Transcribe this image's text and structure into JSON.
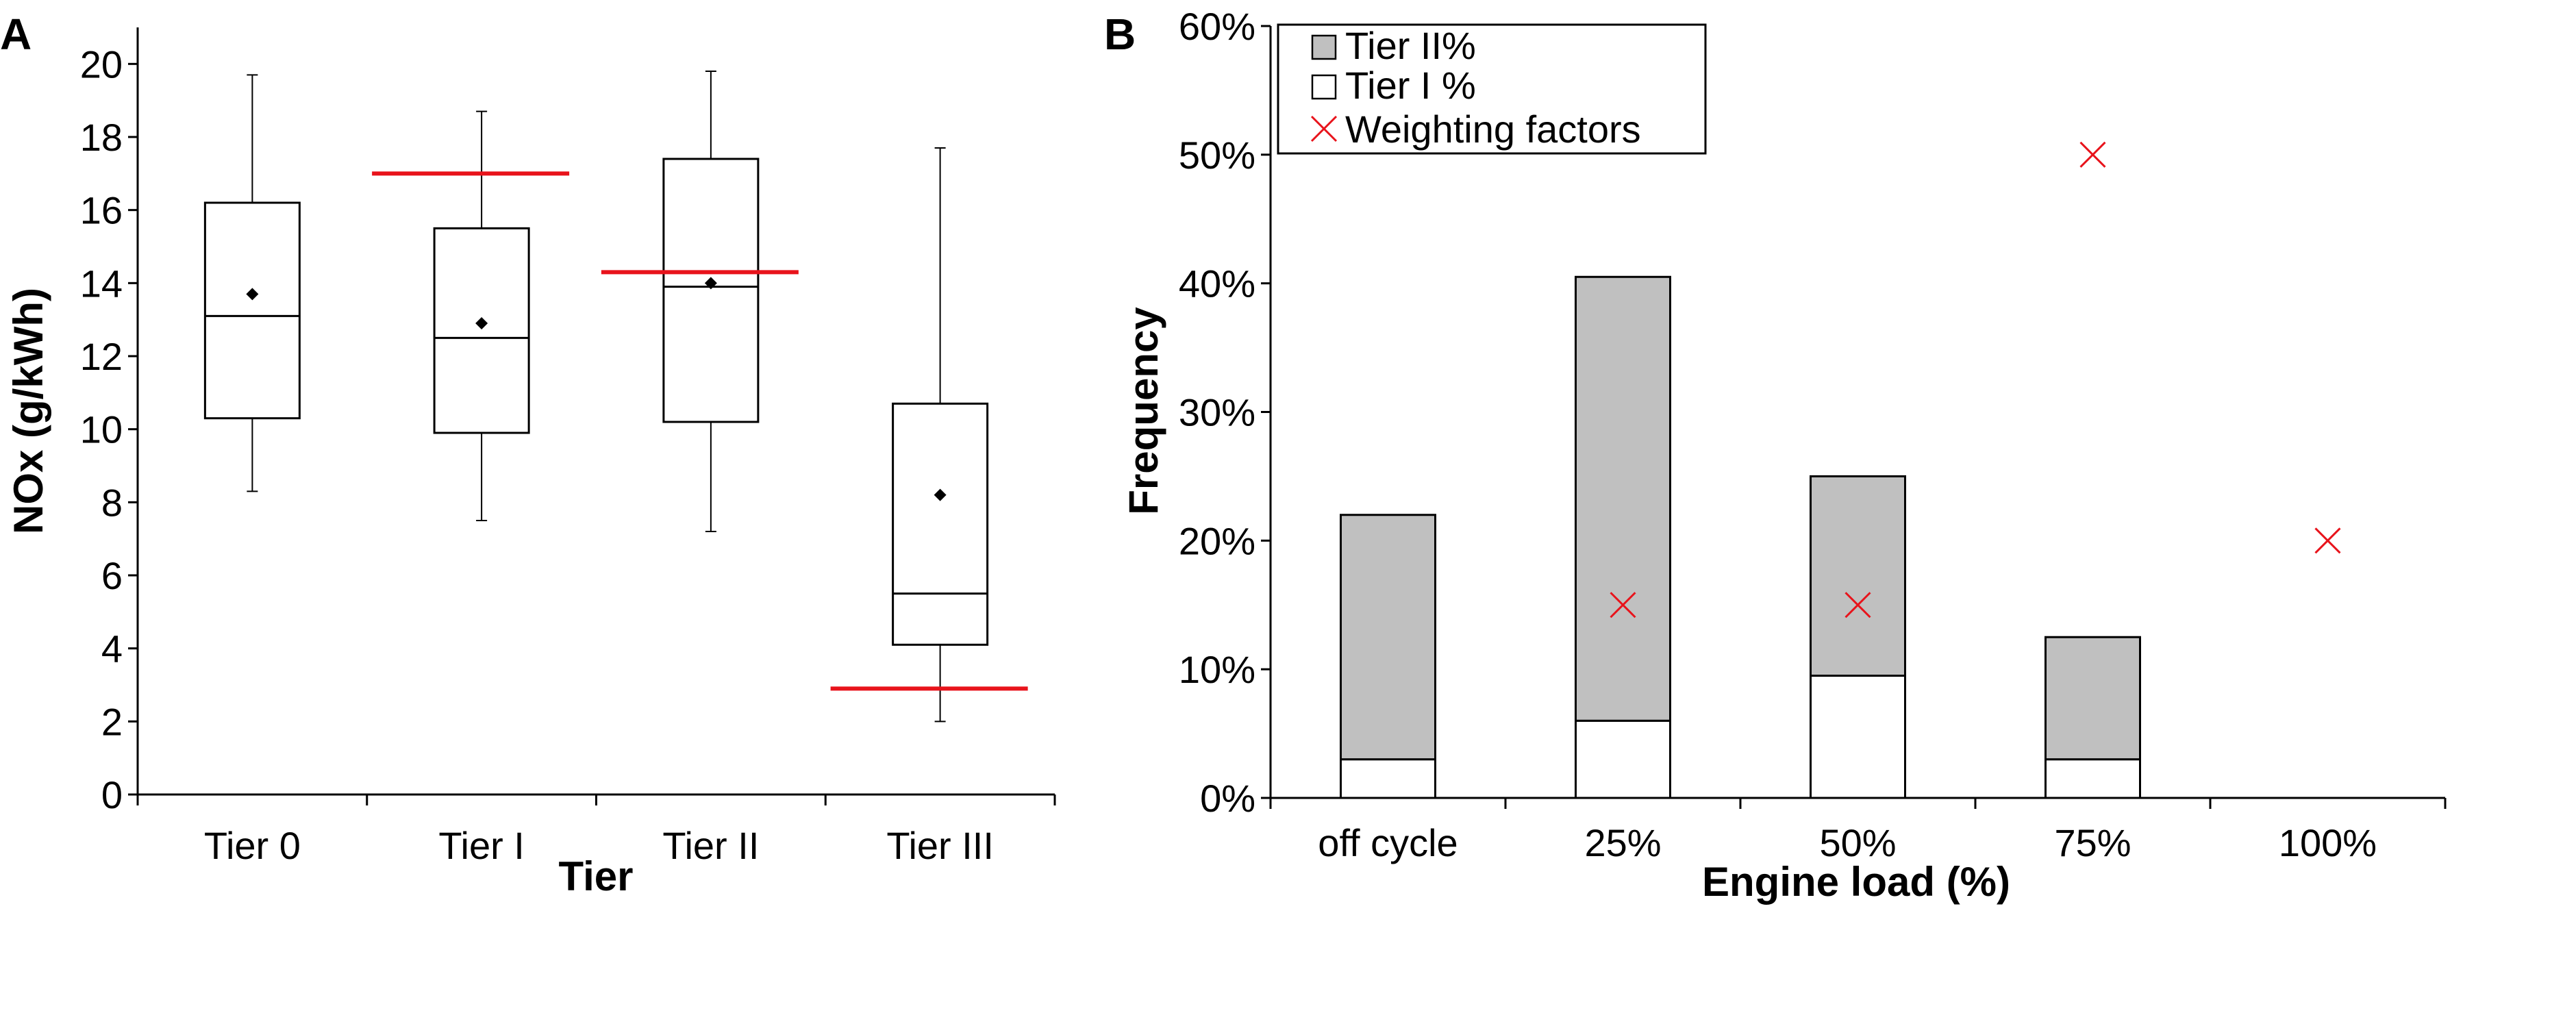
{
  "chart_data": [
    {
      "panel": "A",
      "type": "box",
      "xlabel": "Tier",
      "ylabel": "NOx (g/kWh)",
      "ylim": [
        0,
        21
      ],
      "yticks": [
        "0",
        "2",
        "4",
        "6",
        "8",
        "10",
        "12",
        "14",
        "16",
        "18",
        "20"
      ],
      "categories": [
        "Tier 0",
        "Tier I",
        "Tier II",
        "Tier III"
      ],
      "boxes": [
        {
          "min": 8.3,
          "q1": 10.3,
          "median": 13.1,
          "q3": 16.2,
          "max": 19.7,
          "mean": 13.7
        },
        {
          "min": 7.5,
          "q1": 9.9,
          "median": 12.5,
          "q3": 15.5,
          "max": 18.7,
          "mean": 12.9
        },
        {
          "min": 7.2,
          "q1": 10.2,
          "median": 13.9,
          "q3": 17.4,
          "max": 19.8,
          "mean": 14.0
        },
        {
          "min": 2.0,
          "q1": 4.1,
          "median": 5.5,
          "q3": 10.7,
          "max": 17.7,
          "mean": 8.2
        }
      ],
      "limit_lines": [
        null,
        17.0,
        14.3,
        2.9
      ],
      "colors": {
        "box": "#000000",
        "limit": "#e8131b"
      }
    },
    {
      "panel": "B",
      "type": "bar",
      "stacked": true,
      "xlabel": "Engine load (%)",
      "ylabel": "Frequency",
      "ylim": [
        0,
        60
      ],
      "yticks": [
        "0%",
        "10%",
        "20%",
        "30%",
        "40%",
        "50%",
        "60%"
      ],
      "categories": [
        "off cycle",
        "25%",
        "50%",
        "75%",
        "100%"
      ],
      "series": [
        {
          "name": "Tier I %",
          "values": [
            3,
            6,
            9.5,
            3,
            0
          ],
          "color": "#ffffff"
        },
        {
          "name": "Tier II%",
          "values": [
            19,
            34.5,
            15.5,
            9.5,
            0
          ],
          "color": "#c0c0c0"
        }
      ],
      "weighting_factors": {
        "name": "Weighting factors",
        "values": [
          null,
          15,
          15,
          50,
          20
        ],
        "color": "#e8131b"
      },
      "legend": {
        "position": "top-left",
        "entries": [
          "Tier II%",
          "Tier I %",
          "Weighting factors"
        ]
      }
    }
  ]
}
